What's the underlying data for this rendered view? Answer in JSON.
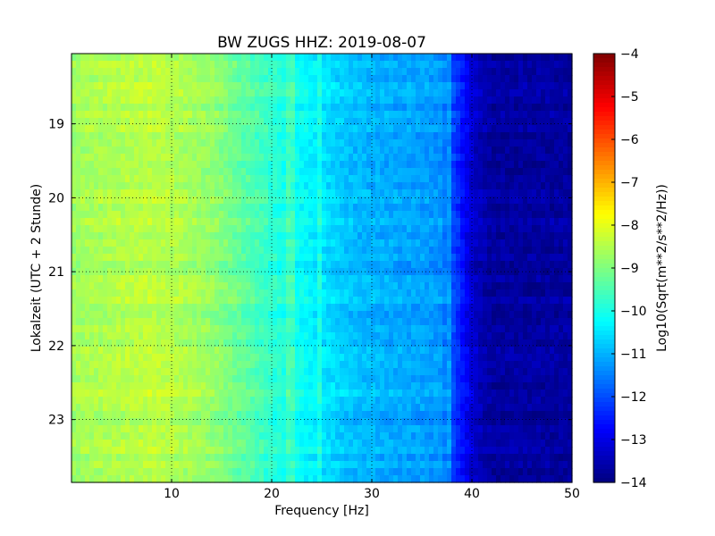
{
  "chart_data": {
    "type": "heatmap",
    "title": "BW ZUGS HHZ: 2019-08-07",
    "xlabel": "Frequency [Hz]",
    "ylabel": "Lokalzeit (UTC + 2 Stunde)",
    "xlim": [
      0,
      50
    ],
    "ylim": [
      18.05,
      23.85
    ],
    "y_inverted": true,
    "x_ticks": [
      10,
      20,
      30,
      40,
      50
    ],
    "x_tick_labels": [
      "10",
      "20",
      "30",
      "40",
      "50"
    ],
    "y_ticks": [
      19,
      20,
      21,
      22,
      23
    ],
    "y_tick_labels": [
      "19",
      "20",
      "21",
      "22",
      "23"
    ],
    "grid": true,
    "colormap": "jet",
    "colorbar": {
      "label": "Log10(Sqrt(m**2/s**2/Hz))",
      "range": [
        -14,
        -4
      ],
      "ticks": [
        -4,
        -5,
        -6,
        -7,
        -8,
        -9,
        -10,
        -11,
        -12,
        -13,
        -14
      ],
      "tick_labels": [
        "−4",
        "−5",
        "−6",
        "−7",
        "−8",
        "−9",
        "−10",
        "−11",
        "−12",
        "−13",
        "−14"
      ]
    },
    "spectrum_profile": {
      "frequency_hz": [
        0,
        2,
        5,
        8,
        10,
        14,
        17,
        20,
        22,
        25,
        28,
        32,
        35,
        37,
        38.5,
        39.5,
        40.5,
        42,
        50
      ],
      "log10_amplitude": [
        -8.7,
        -8.6,
        -8.5,
        -8.4,
        -8.5,
        -8.8,
        -9.3,
        -9.8,
        -10.1,
        -10.5,
        -10.9,
        -11.1,
        -11.2,
        -11.3,
        -12.3,
        -12.9,
        -13.4,
        -13.7,
        -13.7
      ]
    },
    "notable_features": [
      {
        "frequency_hz": 22,
        "kind": "vertical line"
      },
      {
        "frequency_hz": 24.8,
        "kind": "vertical line"
      },
      {
        "frequency_hz": 37.8,
        "kind": "vertical line"
      },
      {
        "time_local": 21.25,
        "kind": "horizontal band"
      },
      {
        "time_local": 22.6,
        "kind": "horizontal band"
      }
    ]
  }
}
